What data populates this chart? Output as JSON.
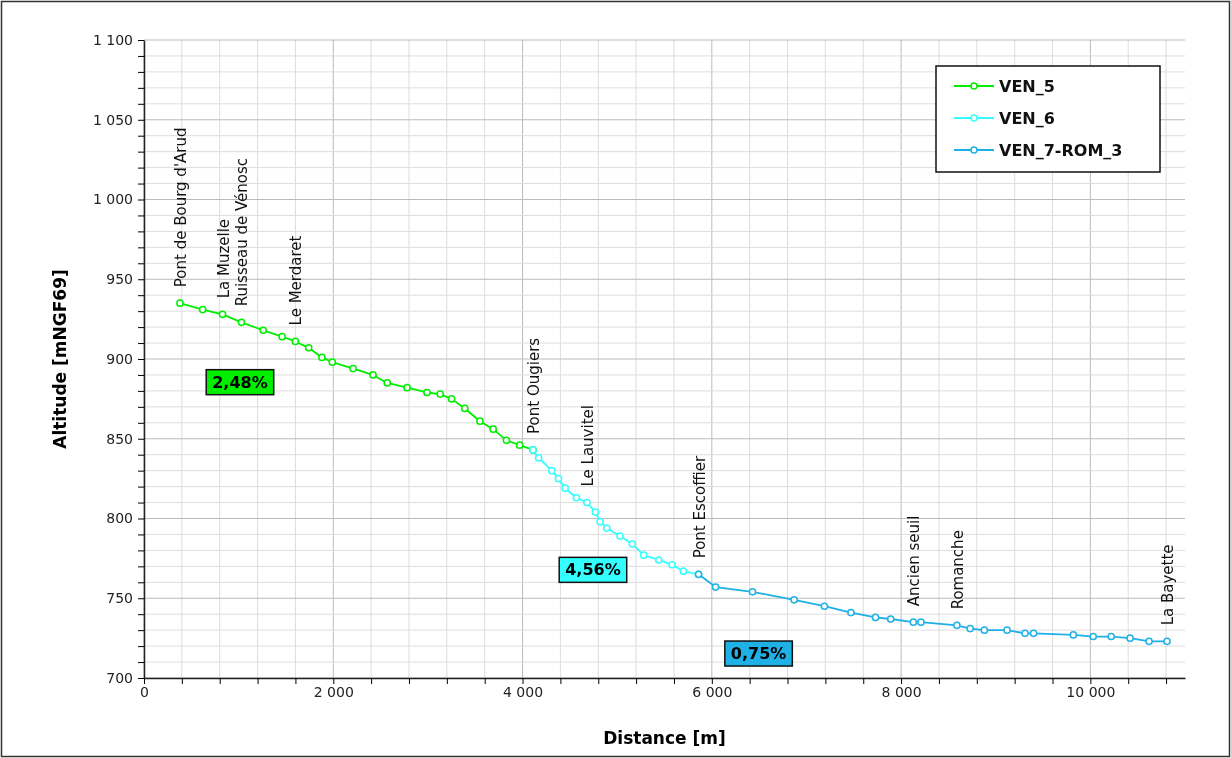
{
  "chart_data": {
    "type": "line",
    "xlabel": "Distance [m]",
    "ylabel": "Altitude [mNGF69]",
    "xlim": [
      0,
      11000
    ],
    "xticks": [
      0,
      {
        "value": 400,
        "label": null
      },
      {
        "value": 800,
        "label": null
      },
      {
        "value": 1200,
        "label": null
      },
      {
        "value": 1600,
        "label": null
      },
      {
        "value": 2000,
        "label": "2 000"
      },
      {
        "value": 2400,
        "label": null
      },
      {
        "value": 2800,
        "label": null
      },
      {
        "value": 3200,
        "label": null
      },
      {
        "value": 3600,
        "label": null
      },
      {
        "value": 4000,
        "label": "4 000"
      },
      {
        "value": 4400,
        "label": null
      },
      {
        "value": 4800,
        "label": null
      },
      {
        "value": 5200,
        "label": null
      },
      {
        "value": 5600,
        "label": null
      },
      {
        "value": 6000,
        "label": "6 000"
      },
      {
        "value": 6400,
        "label": null
      },
      {
        "value": 6800,
        "label": null
      },
      {
        "value": 7200,
        "label": null
      },
      {
        "value": 7600,
        "label": null
      },
      {
        "value": 8000,
        "label": "8 000"
      },
      {
        "value": 8400,
        "label": null
      },
      {
        "value": 8800,
        "label": null
      },
      {
        "value": 9200,
        "label": null
      },
      {
        "value": 9600,
        "label": null
      },
      {
        "value": 10000,
        "label": "10 000"
      },
      {
        "value": 10400,
        "label": null
      },
      {
        "value": 10800,
        "label": null
      }
    ],
    "ylim": [
      700,
      1100
    ],
    "yticks": [
      700,
      {
        "value": 710,
        "label": null
      },
      {
        "value": 720,
        "label": null
      },
      {
        "value": 730,
        "label": null
      },
      {
        "value": 740,
        "label": null
      },
      750,
      {
        "value": 760,
        "label": null
      },
      {
        "value": 770,
        "label": null
      },
      {
        "value": 780,
        "label": null
      },
      {
        "value": 790,
        "label": null
      },
      800,
      {
        "value": 810,
        "label": null
      },
      {
        "value": 820,
        "label": null
      },
      {
        "value": 830,
        "label": null
      },
      {
        "value": 840,
        "label": null
      },
      850,
      {
        "value": 860,
        "label": null
      },
      {
        "value": 870,
        "label": null
      },
      {
        "value": 880,
        "label": null
      },
      {
        "value": 890,
        "label": null
      },
      900,
      {
        "value": 910,
        "label": null
      },
      {
        "value": 920,
        "label": null
      },
      {
        "value": 930,
        "label": null
      },
      {
        "value": 940,
        "label": null
      },
      950,
      {
        "value": 960,
        "label": null
      },
      {
        "value": 970,
        "label": null
      },
      {
        "value": 980,
        "label": null
      },
      {
        "value": 990,
        "label": null
      },
      {
        "value": 1000,
        "label": "1 000"
      },
      {
        "value": 1010,
        "label": null
      },
      {
        "value": 1020,
        "label": null
      },
      {
        "value": 1030,
        "label": null
      },
      {
        "value": 1040,
        "label": null
      },
      {
        "value": 1050,
        "label": "1 050"
      },
      {
        "value": 1060,
        "label": null
      },
      {
        "value": 1070,
        "label": null
      },
      {
        "value": 1080,
        "label": null
      },
      {
        "value": 1090,
        "label": null
      },
      {
        "value": 1100,
        "label": "1 100"
      }
    ],
    "grid": true,
    "legend": "top right",
    "marker": "circle",
    "line_style": "solid",
    "series": [
      {
        "name": "VEN_5",
        "color": "#00ee00",
        "x": [
          380,
          620,
          830,
          1030,
          1260,
          1460,
          1600,
          1740,
          1880,
          1990,
          2210,
          2420,
          2570,
          2780,
          2990,
          3130,
          3250,
          3390,
          3550,
          3690,
          3830,
          3970,
          4110
        ],
        "values": [
          935,
          931,
          928,
          923,
          918,
          914,
          911,
          907,
          901,
          898,
          894,
          890,
          885,
          882,
          879,
          878,
          875,
          869,
          861,
          856,
          849,
          846,
          843
        ]
      },
      {
        "name": "VEN_6",
        "color": "#33ffff",
        "x": [
          4110,
          4170,
          4310,
          4380,
          4450,
          4570,
          4680,
          4770,
          4820,
          4890,
          5030,
          5160,
          5280,
          5440,
          5580,
          5700,
          5860
        ],
        "values": [
          843,
          838,
          830,
          825,
          819,
          813,
          810,
          804,
          798,
          794,
          789,
          784,
          777,
          774,
          771,
          767,
          765
        ]
      },
      {
        "name": "VEN_7-ROM_3",
        "color": "#1fb0e6",
        "x": [
          5860,
          6040,
          6430,
          6870,
          7190,
          7470,
          7730,
          7890,
          8130,
          8210,
          8590,
          8730,
          8880,
          9120,
          9310,
          9400,
          9820,
          10030,
          10220,
          10420,
          10620,
          10810
        ],
        "values": [
          765,
          757,
          754,
          749,
          745,
          741,
          738,
          737,
          735,
          735,
          733,
          731,
          730,
          730,
          728,
          728,
          727,
          726,
          726,
          725,
          723,
          723
        ]
      }
    ],
    "annotations": [
      {
        "text": "Pont de Bourg d'Arud",
        "x": 380,
        "y": 935
      },
      {
        "text": "La Muzelle",
        "x": 830,
        "y": 928
      },
      {
        "text": "Ruisseau de Vénosc",
        "x": 1030,
        "y": 923
      },
      {
        "text": "Le Merdaret",
        "x": 1600,
        "y": 911
      },
      {
        "text": "Pont Ougiers",
        "x": 4110,
        "y": 843
      },
      {
        "text": "Le Lauvitel",
        "x": 4680,
        "y": 810
      },
      {
        "text": "Pont Escoffier",
        "x": 5860,
        "y": 765
      },
      {
        "text": "Ancien seuil",
        "x": 8130,
        "y": 735
      },
      {
        "text": "Romanche",
        "x": 8590,
        "y": 733
      },
      {
        "text": "La Bayette",
        "x": 10810,
        "y": 723
      },
      "2,48%",
      "4,56%",
      "0,75%"
    ]
  }
}
